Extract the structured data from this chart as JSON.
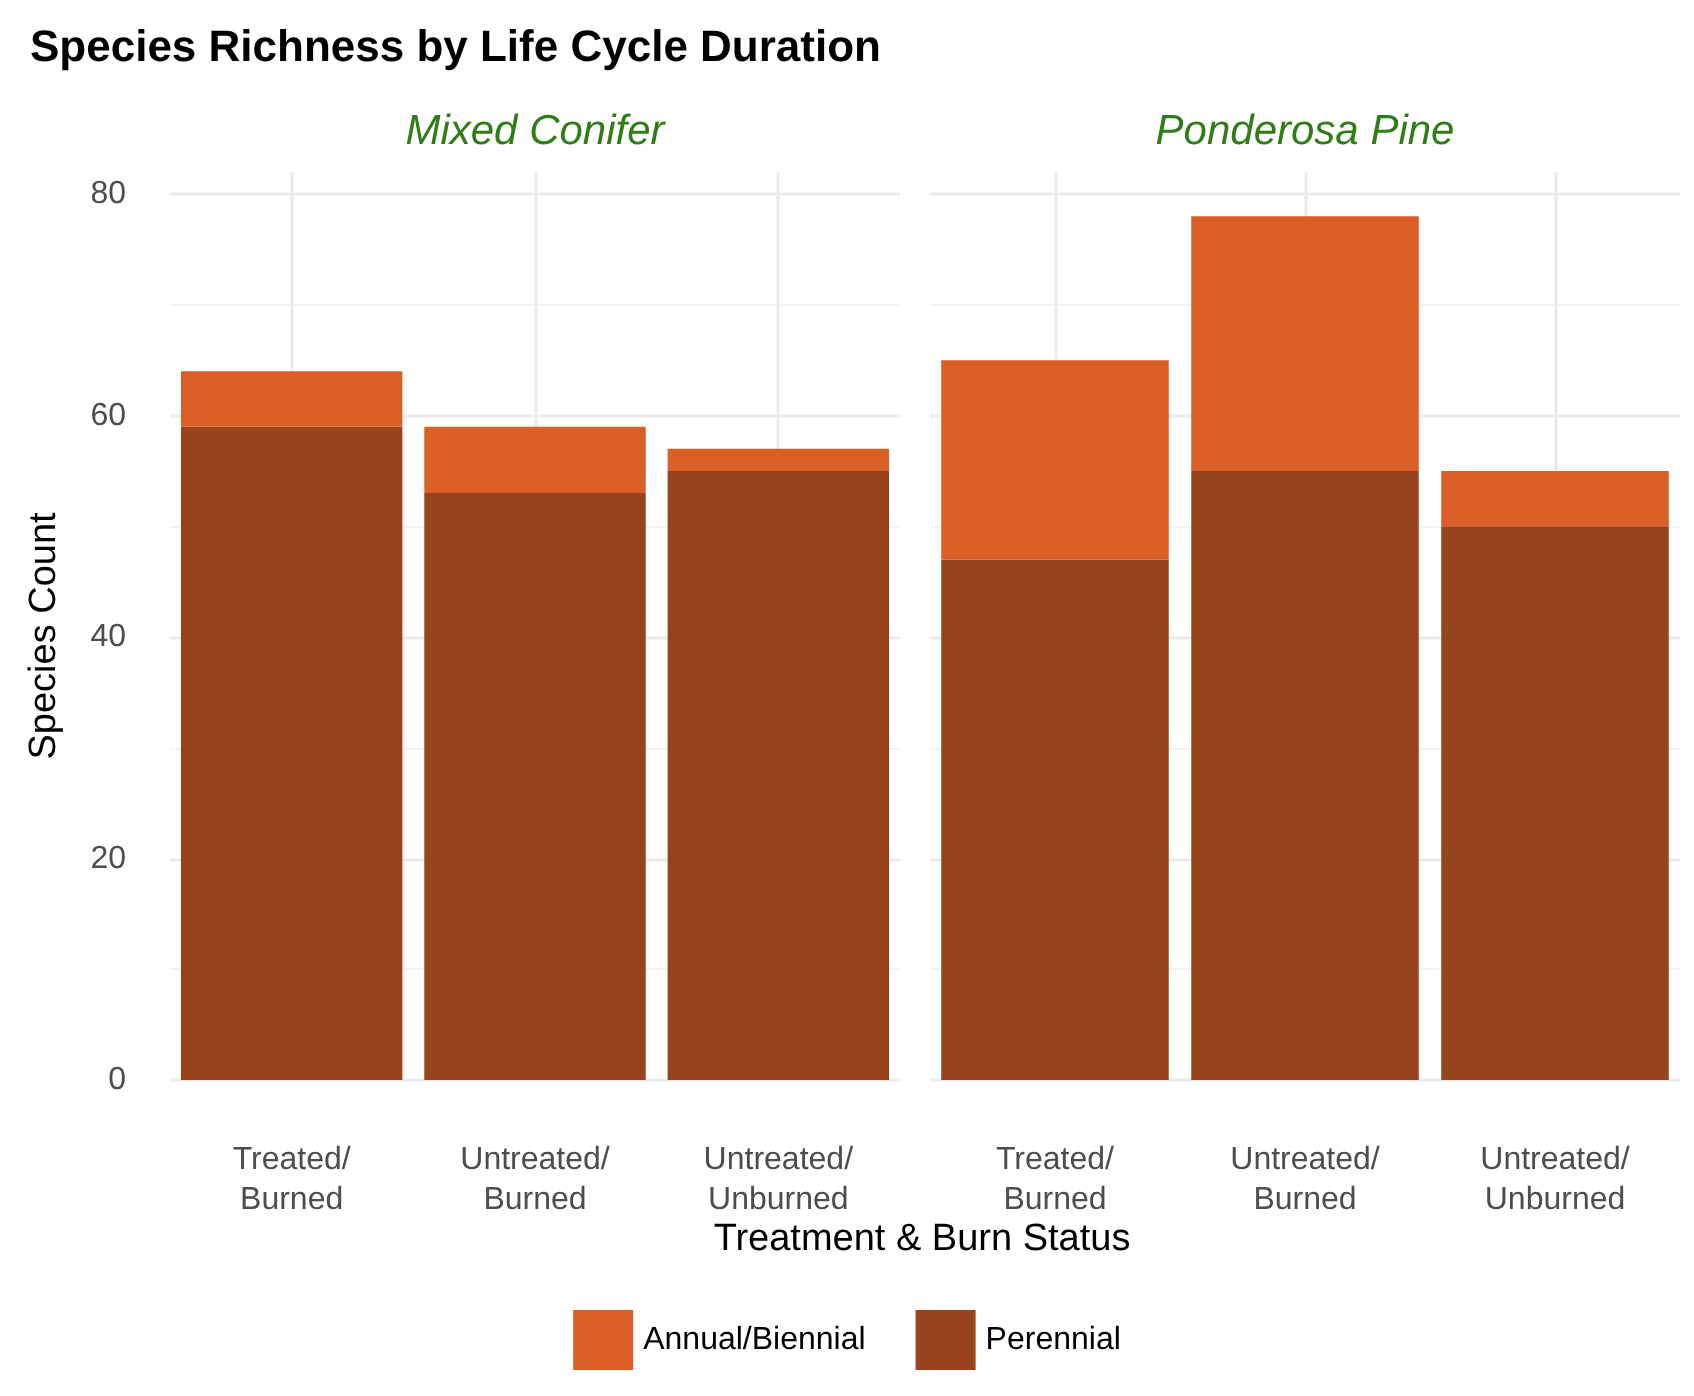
{
  "chart_data": [
    {
      "type": "bar",
      "title": "Species Richness by Life Cycle Duration",
      "subtitle": "Mixed Conifer",
      "xlabel": "Treatment & Burn Status",
      "ylabel": "Species Count",
      "categories": [
        "Treated/Burned",
        "Untreated/Burned",
        "Untreated/Unburned"
      ],
      "stacked": true,
      "series": [
        {
          "name": "Perennial",
          "color": "#96431e",
          "values": [
            59,
            53,
            55
          ]
        },
        {
          "name": "Annual/Biennial",
          "color": "#d95f26",
          "values": [
            5,
            6,
            2
          ]
        }
      ],
      "ylim": [
        0,
        82
      ],
      "yticks": [
        0,
        20,
        40,
        60,
        80
      ],
      "grid": true,
      "legend": "bottom"
    },
    {
      "type": "bar",
      "subtitle": "Ponderosa Pine",
      "categories": [
        "Treated/Burned",
        "Untreated/Burned",
        "Untreated/Unburned"
      ],
      "stacked": true,
      "series": [
        {
          "color": "#96431e",
          "values": [
            47,
            55,
            50
          ]
        },
        {
          "color": "#d95f26",
          "values": [
            18,
            23,
            5
          ]
        }
      ],
      "ylim": [
        0,
        82
      ],
      "yticks": [
        0,
        20,
        40,
        60,
        80
      ],
      "grid": true,
      "tick_labels": "x"
    }
  ]
}
